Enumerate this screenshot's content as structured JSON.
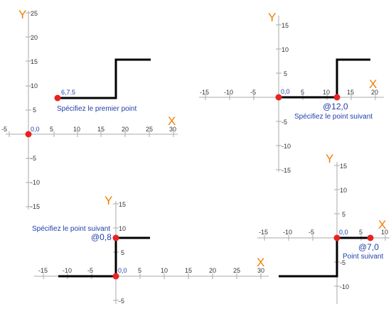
{
  "colors": {
    "axis": "#aaaaaa",
    "axis_label": "#f07d00",
    "path": "#000000",
    "point": "#e8231f",
    "annotation": "#1f3fa8"
  },
  "axis_names": {
    "x": "X",
    "y": "Y"
  },
  "panels": [
    {
      "id": "p1",
      "x_ticks": [
        "-5",
        "5",
        "10",
        "15",
        "20",
        "25",
        "30"
      ],
      "y_ticks": [
        "25",
        "20",
        "15",
        "10",
        "5",
        "-5",
        "-10",
        "-15"
      ],
      "origin_label": "0,0",
      "point_label": "6,7.5",
      "prompt": "Spécifiez le premier point"
    },
    {
      "id": "p2",
      "x_ticks": [
        "-15",
        "-10",
        "-5",
        "5",
        "10",
        "15",
        "20"
      ],
      "y_ticks": [
        "15",
        "10",
        "5",
        "-5",
        "-10",
        "-15"
      ],
      "origin_label": "0,0",
      "point_label": "@12,0",
      "prompt": "Spécifiez le point suivant"
    },
    {
      "id": "p3",
      "x_ticks": [
        "-15",
        "-10",
        "-5",
        "5",
        "10",
        "15",
        "20",
        "25",
        "30"
      ],
      "y_ticks": [
        "15",
        "10",
        "5",
        "-5"
      ],
      "origin_label": "0,0",
      "point_label": "@0,8",
      "prompt": "Spécifiez le point suivant"
    },
    {
      "id": "p4",
      "x_ticks": [
        "-15",
        "-10",
        "-5",
        "5",
        "10"
      ],
      "y_ticks": [
        "15",
        "10",
        "5",
        "-5",
        "-10"
      ],
      "origin_label": "0,0",
      "point_label": "@7,0",
      "prompt": "Point suivant"
    }
  ]
}
